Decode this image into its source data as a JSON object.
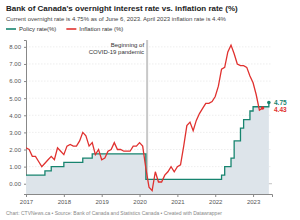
{
  "chart_data": {
    "type": "line",
    "title": "Bank of Canada's overnight interest rate vs. inflation rate (%)",
    "subtitle": "Current overnight rate is 4.75% as of June 6, 2023. April 2023 inflation rate is 4.4%",
    "caption": "Chart: CTVNews.ca • Source: Bank of Canada and Statistics Canada • Created with Datawrapper",
    "x": [
      2017,
      2017.083,
      2017.167,
      2017.25,
      2017.333,
      2017.417,
      2017.5,
      2017.583,
      2017.667,
      2017.75,
      2017.833,
      2017.917,
      2018,
      2018.083,
      2018.167,
      2018.25,
      2018.333,
      2018.417,
      2018.5,
      2018.583,
      2018.667,
      2018.75,
      2018.833,
      2018.917,
      2019,
      2019.083,
      2019.167,
      2019.25,
      2019.333,
      2019.417,
      2019.5,
      2019.583,
      2019.667,
      2019.75,
      2019.833,
      2019.917,
      2020,
      2020.083,
      2020.167,
      2020.25,
      2020.333,
      2020.417,
      2020.5,
      2020.583,
      2020.667,
      2020.75,
      2020.833,
      2020.917,
      2021,
      2021.083,
      2021.167,
      2021.25,
      2021.333,
      2021.417,
      2021.5,
      2021.583,
      2021.667,
      2021.75,
      2021.833,
      2021.917,
      2022,
      2022.083,
      2022.167,
      2022.25,
      2022.333,
      2022.417,
      2022.5,
      2022.583,
      2022.667,
      2022.75,
      2022.833,
      2022.917,
      2023,
      2023.083,
      2023.167,
      2023.25,
      2023.333,
      2023.417
    ],
    "series": [
      {
        "name": "Policy rate(%)",
        "color": "#17846f",
        "type": "area",
        "line_style": "step",
        "values": [
          0.5,
          0.5,
          0.5,
          0.5,
          0.5,
          0.5,
          0.75,
          0.75,
          1,
          1,
          1,
          1,
          1.25,
          1.25,
          1.25,
          1.25,
          1.25,
          1.25,
          1.5,
          1.5,
          1.5,
          1.75,
          1.75,
          1.75,
          1.75,
          1.75,
          1.75,
          1.75,
          1.75,
          1.75,
          1.75,
          1.75,
          1.75,
          1.75,
          1.75,
          1.75,
          1.75,
          1.75,
          0.25,
          0.25,
          0.25,
          0.25,
          0.25,
          0.25,
          0.25,
          0.25,
          0.25,
          0.25,
          0.25,
          0.25,
          0.25,
          0.25,
          0.25,
          0.25,
          0.25,
          0.25,
          0.25,
          0.25,
          0.25,
          0.25,
          0.25,
          0.25,
          0.5,
          1,
          1,
          1.5,
          2.5,
          2.5,
          3.25,
          3.75,
          3.75,
          4.25,
          4.5,
          4.5,
          4.5,
          4.5,
          4.5,
          4.75
        ],
        "value_labels": [
          null,
          null,
          null,
          null,
          null,
          null,
          null,
          null,
          null,
          null,
          null,
          null,
          null,
          null,
          null,
          null,
          null,
          null,
          null,
          null,
          null,
          null,
          null,
          null,
          null,
          null,
          null,
          null,
          null,
          null,
          null,
          null,
          null,
          null,
          null,
          null,
          null,
          null,
          null,
          null,
          null,
          null,
          null,
          null,
          null,
          null,
          null,
          null,
          null,
          null,
          null,
          null,
          null,
          null,
          null,
          null,
          null,
          null,
          null,
          null,
          null,
          null,
          null,
          null,
          null,
          null,
          null,
          null,
          null,
          null,
          null,
          null,
          null,
          null,
          null,
          null,
          null,
          "4.75"
        ]
      },
      {
        "name": "Inflation rate (%)",
        "color": "#e0312f",
        "type": "line",
        "line_style": "solid",
        "values": [
          2.1,
          2.0,
          1.6,
          1.6,
          1.3,
          1.0,
          1.2,
          1.4,
          1.6,
          1.4,
          2.1,
          1.9,
          1.7,
          2.2,
          2.3,
          2.2,
          2.2,
          2.5,
          3.0,
          2.8,
          2.2,
          2.4,
          1.7,
          2.0,
          1.4,
          1.5,
          1.9,
          2.0,
          2.4,
          2.0,
          2.0,
          1.9,
          1.9,
          1.9,
          2.2,
          2.2,
          2.4,
          2.2,
          0.9,
          -0.2,
          -0.4,
          0.7,
          0.1,
          0.1,
          0.5,
          0.7,
          1.0,
          0.7,
          1.0,
          1.1,
          2.2,
          3.4,
          3.6,
          3.1,
          3.7,
          4.1,
          4.4,
          4.7,
          4.7,
          4.8,
          5.1,
          5.7,
          6.7,
          6.8,
          7.7,
          8.1,
          7.6,
          7.0,
          6.9,
          6.9,
          6.8,
          6.3,
          5.9,
          5.2,
          4.3,
          4.43,
          null,
          null
        ],
        "value_labels": [
          null,
          null,
          null,
          null,
          null,
          null,
          null,
          null,
          null,
          null,
          null,
          null,
          null,
          null,
          null,
          null,
          null,
          null,
          null,
          null,
          null,
          null,
          null,
          null,
          null,
          null,
          null,
          null,
          null,
          null,
          null,
          null,
          null,
          null,
          null,
          null,
          null,
          null,
          null,
          null,
          null,
          null,
          null,
          null,
          null,
          null,
          null,
          null,
          null,
          null,
          null,
          null,
          null,
          null,
          null,
          null,
          null,
          null,
          null,
          null,
          null,
          null,
          null,
          null,
          null,
          null,
          null,
          null,
          null,
          null,
          null,
          null,
          null,
          null,
          null,
          "4.43",
          null,
          null
        ]
      }
    ],
    "annotations": [
      {
        "text": "Beginning of COVID-19 pandemic",
        "x": 2020.2
      }
    ],
    "xlim": [
      2017,
      2023.5
    ],
    "xticks": [
      2017,
      2018,
      2019,
      2020,
      2021,
      2022,
      2023
    ],
    "ylim": [
      -0.6,
      8.4
    ],
    "yticks": [
      {
        "value": 0,
        "label": "0.00"
      },
      {
        "value": 1,
        "label": "1.00"
      },
      {
        "value": 2,
        "label": "2.00"
      },
      {
        "value": 3,
        "label": "3.00"
      },
      {
        "value": 4,
        "label": "4.00"
      },
      {
        "value": 5,
        "label": "5.00"
      },
      {
        "value": 6,
        "label": "6.00"
      },
      {
        "value": 7,
        "label": "7.00"
      },
      {
        "value": 8,
        "label": "8.00"
      }
    ],
    "grid": true,
    "legend": "top-left"
  }
}
